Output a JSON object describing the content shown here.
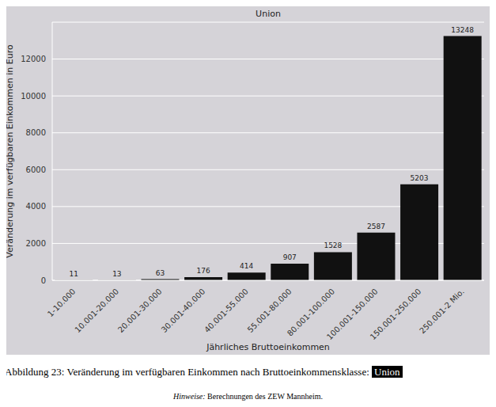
{
  "chart_data": {
    "type": "bar",
    "title": "Union",
    "x_label": "Jährliches Bruttoeinkommen",
    "y_label": "Veränderung im verfügbaren Einkommen in Euro",
    "categories": [
      "1-10.000",
      "10.001-20.000",
      "20.001-30.000",
      "30.001-40.000",
      "40.001-55.000",
      "55.001-80.000",
      "80.001-100.000",
      "100.001-150.000",
      "150.001-250.000",
      "250.001-2 Mio."
    ],
    "values": [
      11,
      13,
      63,
      176,
      414,
      907,
      1528,
      2587,
      5203,
      13248
    ],
    "color": "#111111",
    "ylim": [
      0,
      14000
    ],
    "yticks": [
      0,
      2000,
      4000,
      6000,
      8000,
      10000,
      12000
    ],
    "grid": true,
    "data_labels": true
  },
  "caption": "Abbildung 23: Veränderung im verfügbaren Einkommen nach Bruttoeinkommensklasse:",
  "caption_highlight": "Union",
  "note_label": "Hinweise:",
  "note": "Berechnungen des ZEW Mannheim."
}
